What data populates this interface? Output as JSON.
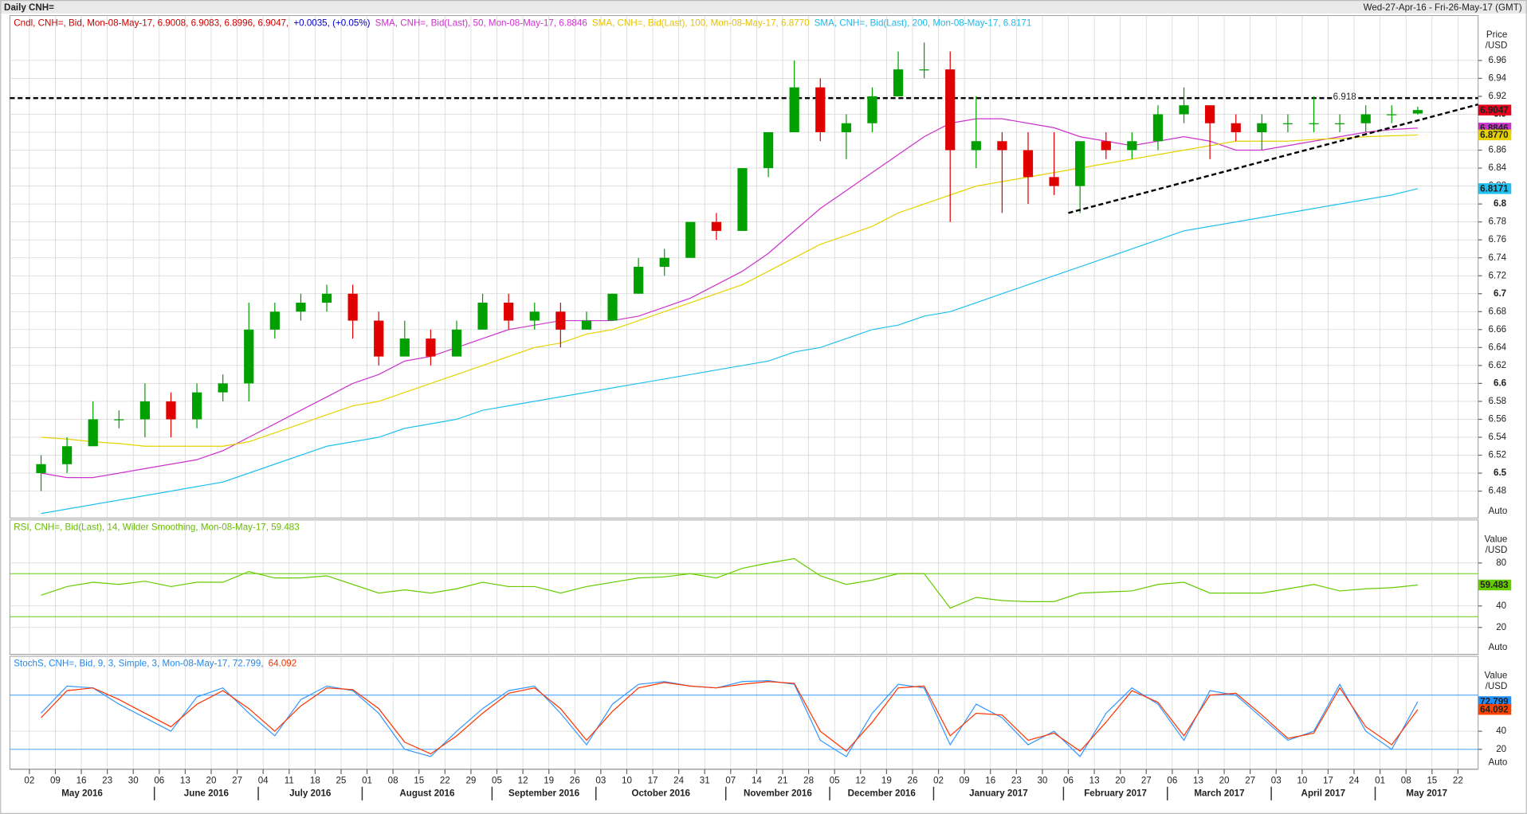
{
  "header": {
    "title": "Daily CNH=",
    "range": "Wed-27-Apr-16 - Fri-26-May-17 (GMT)"
  },
  "x_axis": {
    "ticks": [
      "02",
      "09",
      "16",
      "23",
      "30",
      "06",
      "13",
      "20",
      "27",
      "04",
      "11",
      "18",
      "25",
      "01",
      "08",
      "15",
      "22",
      "29",
      "05",
      "12",
      "19",
      "26",
      "03",
      "10",
      "17",
      "24",
      "31",
      "07",
      "14",
      "21",
      "28",
      "05",
      "12",
      "19",
      "26",
      "02",
      "09",
      "16",
      "23",
      "30",
      "06",
      "13",
      "20",
      "27",
      "06",
      "13",
      "20",
      "27",
      "03",
      "10",
      "17",
      "24",
      "01",
      "08",
      "15",
      "22"
    ],
    "months": [
      "May 2016",
      "June 2016",
      "July 2016",
      "August 2016",
      "September 2016",
      "October 2016",
      "November 2016",
      "December 2016",
      "January 2017",
      "February 2017",
      "March 2017",
      "April 2017",
      "May 2017"
    ]
  },
  "chart_data": [
    {
      "type": "candlestick",
      "legend": [
        {
          "text": "Cndl, CNH=, Bid, Mon-08-May-17, 6.9008, 6.9083, 6.8996, 6.9047,",
          "color": "#cc0000"
        },
        {
          "text": "+0.0035, (+0.05%)",
          "color": "#0000cc"
        },
        {
          "text": "SMA, CNH=, Bid(Last), 50, Mon-08-May-17, 6.8846",
          "color": "#cc33cc"
        },
        {
          "text": "SMA, CNH=, Bid(Last), 100, Mon-08-May-17, 6.8770",
          "color": "#e6c200"
        },
        {
          "text": "SMA, CNH=, Bid(Last), 200, Mon-08-May-17, 6.8171",
          "color": "#22b8e8"
        }
      ],
      "axis_title": [
        "Price",
        "/USD"
      ],
      "axis_note": "Auto",
      "ylim": [
        6.45,
        7.01
      ],
      "yticks": [
        6.48,
        6.5,
        6.52,
        6.54,
        6.56,
        6.58,
        6.6,
        6.62,
        6.64,
        6.66,
        6.68,
        6.7,
        6.72,
        6.74,
        6.76,
        6.78,
        6.8,
        6.82,
        6.84,
        6.86,
        6.88,
        6.9,
        6.92,
        6.94,
        6.96
      ],
      "open": [
        6.5,
        6.51,
        6.53,
        6.56,
        6.56,
        6.58,
        6.56,
        6.59,
        6.6,
        6.66,
        6.68,
        6.69,
        6.7,
        6.67,
        6.63,
        6.65,
        6.63,
        6.66,
        6.69,
        6.67,
        6.68,
        6.66,
        6.67,
        6.7,
        6.73,
        6.74,
        6.78,
        6.77,
        6.84,
        6.88,
        6.93,
        6.88,
        6.89,
        6.92,
        6.95,
        6.95,
        6.86,
        6.87,
        6.86,
        6.83,
        6.82,
        6.87,
        6.86,
        6.87,
        6.9,
        6.91,
        6.89,
        6.88,
        6.89,
        6.89,
        6.89,
        6.89,
        6.9,
        6.9008
      ],
      "high": [
        6.52,
        6.54,
        6.58,
        6.57,
        6.6,
        6.59,
        6.6,
        6.61,
        6.69,
        6.69,
        6.7,
        6.71,
        6.71,
        6.68,
        6.67,
        6.66,
        6.67,
        6.7,
        6.7,
        6.69,
        6.69,
        6.68,
        6.7,
        6.74,
        6.75,
        6.78,
        6.79,
        6.84,
        6.88,
        6.96,
        6.94,
        6.9,
        6.93,
        6.97,
        6.98,
        6.97,
        6.92,
        6.88,
        6.88,
        6.88,
        6.87,
        6.88,
        6.88,
        6.91,
        6.93,
        6.91,
        6.9,
        6.9,
        6.9,
        6.92,
        6.9,
        6.91,
        6.91,
        6.9083
      ],
      "low": [
        6.48,
        6.5,
        6.53,
        6.55,
        6.54,
        6.54,
        6.55,
        6.58,
        6.58,
        6.65,
        6.67,
        6.68,
        6.65,
        6.62,
        6.63,
        6.62,
        6.63,
        6.66,
        6.66,
        6.66,
        6.64,
        6.66,
        6.67,
        6.7,
        6.72,
        6.74,
        6.76,
        6.77,
        6.83,
        6.88,
        6.87,
        6.85,
        6.88,
        6.92,
        6.94,
        6.78,
        6.84,
        6.79,
        6.8,
        6.81,
        6.79,
        6.85,
        6.85,
        6.86,
        6.89,
        6.85,
        6.87,
        6.86,
        6.88,
        6.88,
        6.88,
        6.88,
        6.89,
        6.8996
      ],
      "close": [
        6.51,
        6.53,
        6.56,
        6.56,
        6.58,
        6.56,
        6.59,
        6.6,
        6.66,
        6.68,
        6.69,
        6.7,
        6.67,
        6.63,
        6.65,
        6.63,
        6.66,
        6.69,
        6.67,
        6.68,
        6.66,
        6.67,
        6.7,
        6.73,
        6.74,
        6.78,
        6.77,
        6.84,
        6.88,
        6.93,
        6.88,
        6.89,
        6.92,
        6.95,
        6.95,
        6.86,
        6.87,
        6.86,
        6.83,
        6.82,
        6.87,
        6.86,
        6.87,
        6.9,
        6.91,
        6.89,
        6.88,
        6.89,
        6.89,
        6.89,
        6.89,
        6.9,
        6.9,
        6.9047
      ],
      "up_color": "#00a000",
      "down_color": "#e00000",
      "last_box_color": "#e8001c",
      "series": [
        {
          "color": "#cc33cc",
          "last_label": "6.8846",
          "values": [
            6.5,
            6.495,
            6.495,
            6.5,
            6.505,
            6.51,
            6.515,
            6.525,
            6.54,
            6.555,
            6.57,
            6.585,
            6.6,
            6.61,
            6.625,
            6.63,
            6.64,
            6.65,
            6.66,
            6.665,
            6.67,
            6.67,
            6.67,
            6.675,
            6.685,
            6.695,
            6.71,
            6.725,
            6.745,
            6.77,
            6.795,
            6.815,
            6.835,
            6.855,
            6.875,
            6.89,
            6.895,
            6.895,
            6.89,
            6.885,
            6.875,
            6.87,
            6.865,
            6.87,
            6.875,
            6.87,
            6.86,
            6.86,
            6.865,
            6.87,
            6.875,
            6.88,
            6.883,
            6.8846
          ]
        },
        {
          "color": "#e6d200",
          "last_label": "6.8770",
          "values": [
            6.54,
            6.538,
            6.535,
            6.533,
            6.53,
            6.53,
            6.53,
            6.53,
            6.535,
            6.545,
            6.555,
            6.565,
            6.575,
            6.58,
            6.59,
            6.6,
            6.61,
            6.62,
            6.63,
            6.64,
            6.645,
            6.655,
            6.66,
            6.67,
            6.68,
            6.69,
            6.7,
            6.71,
            6.725,
            6.74,
            6.755,
            6.765,
            6.775,
            6.79,
            6.8,
            6.81,
            6.82,
            6.825,
            6.83,
            6.835,
            6.84,
            6.845,
            6.85,
            6.855,
            6.86,
            6.865,
            6.87,
            6.87,
            6.87,
            6.872,
            6.873,
            6.875,
            6.876,
            6.877
          ]
        },
        {
          "color": "#22c0ee",
          "last_label": "6.8171",
          "values": [
            6.455,
            6.46,
            6.465,
            6.47,
            6.475,
            6.48,
            6.485,
            6.49,
            6.5,
            6.51,
            6.52,
            6.53,
            6.535,
            6.54,
            6.55,
            6.555,
            6.56,
            6.57,
            6.575,
            6.58,
            6.585,
            6.59,
            6.595,
            6.6,
            6.605,
            6.61,
            6.615,
            6.62,
            6.625,
            6.635,
            6.64,
            6.65,
            6.66,
            6.665,
            6.675,
            6.68,
            6.69,
            6.7,
            6.71,
            6.72,
            6.73,
            6.74,
            6.75,
            6.76,
            6.77,
            6.775,
            6.78,
            6.785,
            6.79,
            6.795,
            6.8,
            6.805,
            6.81,
            6.8171
          ]
        }
      ],
      "levels": [
        {
          "value": 6.918,
          "label": "6.918",
          "color": "#000000",
          "dashed": true
        }
      ],
      "trendline": {
        "x": [
          40,
          55
        ],
        "values": [
          6.79,
          6.905
        ],
        "color": "#000000"
      }
    },
    {
      "type": "line",
      "legend": [
        {
          "text": "RSI, CNH=, Bid(Last), 14, Wilder Smoothing, Mon-08-May-17, 59.483",
          "color": "#66bb00"
        }
      ],
      "axis_title": [
        "Value",
        "/USD"
      ],
      "axis_note": "Auto",
      "ylim": [
        -5,
        120
      ],
      "yticks": [
        20,
        40,
        80
      ],
      "series": [
        {
          "color": "#66cc00",
          "box_color": "#66cc00",
          "values": [
            50,
            58,
            62,
            60,
            63,
            58,
            62,
            62,
            72,
            66,
            66,
            68,
            60,
            52,
            55,
            52,
            56,
            62,
            58,
            58,
            52,
            58,
            62,
            66,
            67,
            70,
            66,
            75,
            80,
            84,
            68,
            60,
            64,
            70,
            70,
            38,
            48,
            45,
            44,
            44,
            52,
            53,
            54,
            60,
            62,
            52,
            52,
            52,
            56,
            60,
            54,
            56,
            57,
            59.483
          ]
        }
      ],
      "levels": [
        {
          "value": 30,
          "color": "#66cc00"
        },
        {
          "value": 70,
          "color": "#66cc00"
        }
      ]
    },
    {
      "type": "line",
      "legend": [
        {
          "text": "StochS, CNH=, Bid, 9, 3, Simple, 3, Mon-08-May-17, 72.799,",
          "color": "#2288ee"
        },
        {
          "text": "64.092",
          "color": "#ee3300"
        }
      ],
      "axis_title": [
        "Value",
        "/USD"
      ],
      "axis_note": "Auto",
      "ylim": [
        -2,
        123
      ],
      "yticks": [
        20,
        40
      ],
      "series": [
        {
          "color": "#3399ff",
          "box_color": "#1e90ff",
          "values": [
            60,
            90,
            88,
            70,
            55,
            40,
            78,
            88,
            60,
            35,
            75,
            90,
            85,
            60,
            20,
            12,
            40,
            65,
            85,
            90,
            60,
            25,
            70,
            92,
            95,
            90,
            88,
            95,
            96,
            92,
            30,
            12,
            60,
            92,
            88,
            25,
            70,
            55,
            25,
            40,
            12,
            60,
            88,
            70,
            30,
            85,
            80,
            55,
            30,
            40,
            92,
            40,
            20,
            72.799
          ]
        },
        {
          "color": "#ff3300",
          "box_color": "#ff4400",
          "values": [
            55,
            85,
            88,
            75,
            60,
            45,
            70,
            85,
            65,
            40,
            68,
            88,
            86,
            65,
            28,
            15,
            35,
            60,
            82,
            88,
            65,
            30,
            62,
            88,
            94,
            90,
            88,
            92,
            95,
            93,
            40,
            18,
            50,
            88,
            90,
            35,
            60,
            58,
            30,
            38,
            18,
            50,
            85,
            72,
            35,
            80,
            82,
            58,
            32,
            38,
            88,
            45,
            25,
            64.092
          ]
        }
      ],
      "levels": [
        {
          "value": 20,
          "color": "#3399ff"
        },
        {
          "value": 80,
          "color": "#3399ff"
        }
      ]
    }
  ]
}
